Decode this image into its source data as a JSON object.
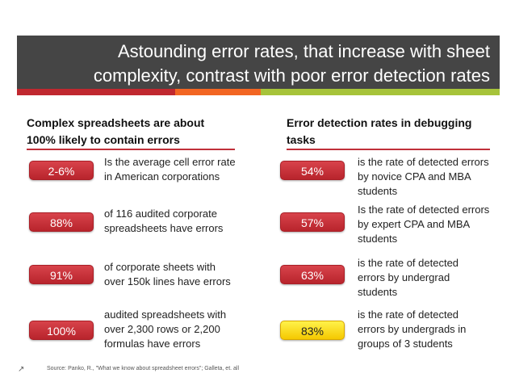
{
  "title": {
    "line1": "Astounding error rates, that increase with sheet",
    "line2": "complexity, contrast with poor error detection rates"
  },
  "colors": {
    "title_bg": "#454545",
    "stripe_red": "#c0282f",
    "stripe_orange": "#f26522",
    "stripe_green": "#a6c33a",
    "badge_red": "#c8343c",
    "badge_yellow": "#ffe600"
  },
  "left": {
    "heading_line1": "Complex spreadsheets are about",
    "heading_line2": "100% likely to contain errors",
    "items": [
      {
        "value": "2-6%",
        "text1": "Is the average cell error rate",
        "text2": "in American corporations",
        "text3": ""
      },
      {
        "value": "88%",
        "text1": "of 116 audited corporate",
        "text2": "spreadsheets have errors",
        "text3": ""
      },
      {
        "value": "91%",
        "text1": "of corporate sheets with",
        "text2": "over 150k lines have errors",
        "text3": ""
      },
      {
        "value": "100%",
        "text1": "audited spreadsheets with",
        "text2": "over 2,300 rows or 2,200",
        "text3": "formulas have errors"
      }
    ]
  },
  "right": {
    "heading_line1": "Error detection rates in debugging",
    "heading_line2": "tasks",
    "items": [
      {
        "value": "54%",
        "text1": "is the rate of detected errors",
        "text2": "by novice CPA and MBA",
        "text3": "students"
      },
      {
        "value": "57%",
        "text1": "Is the rate of detected errors",
        "text2": "by expert CPA and MBA",
        "text3": "students"
      },
      {
        "value": "63%",
        "text1": "is the rate of detected",
        "text2": "errors by undergrad",
        "text3": "students"
      },
      {
        "value": "83%",
        "text1": "is the rate of detected",
        "text2": "errors by undergrads in",
        "text3": "groups of 3 students"
      }
    ]
  },
  "footer": {
    "icon": "arrow-up-right-icon",
    "icon_glyph": "↗",
    "source": "Source:  Panko, R., \"What we know about spreadsheet errors\"; Galleta, et. all"
  }
}
